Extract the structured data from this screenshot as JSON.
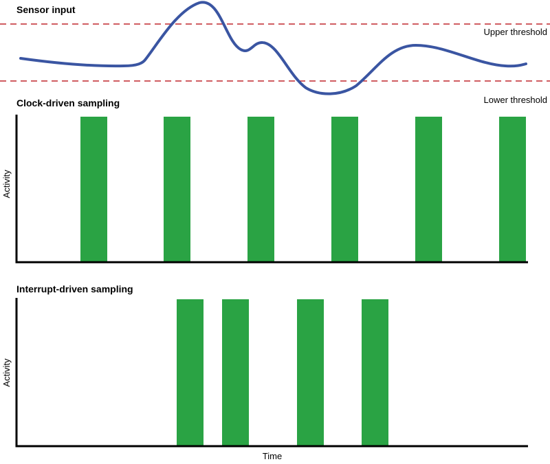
{
  "panels": {
    "sensor": {
      "title": "Sensor input"
    },
    "clock": {
      "title": "Clock-driven sampling",
      "ylabel": "Activity"
    },
    "interrupt": {
      "title": "Interrupt-driven sampling",
      "ylabel": "Activity"
    }
  },
  "thresholds": {
    "upper": "Upper threshold",
    "lower": "Lower threshold"
  },
  "xaxis_label": "Time",
  "colors": {
    "signal": "#3a55a2",
    "threshold": "#c0272d",
    "pulse": "#2aa344",
    "axis": "#000000"
  }
}
